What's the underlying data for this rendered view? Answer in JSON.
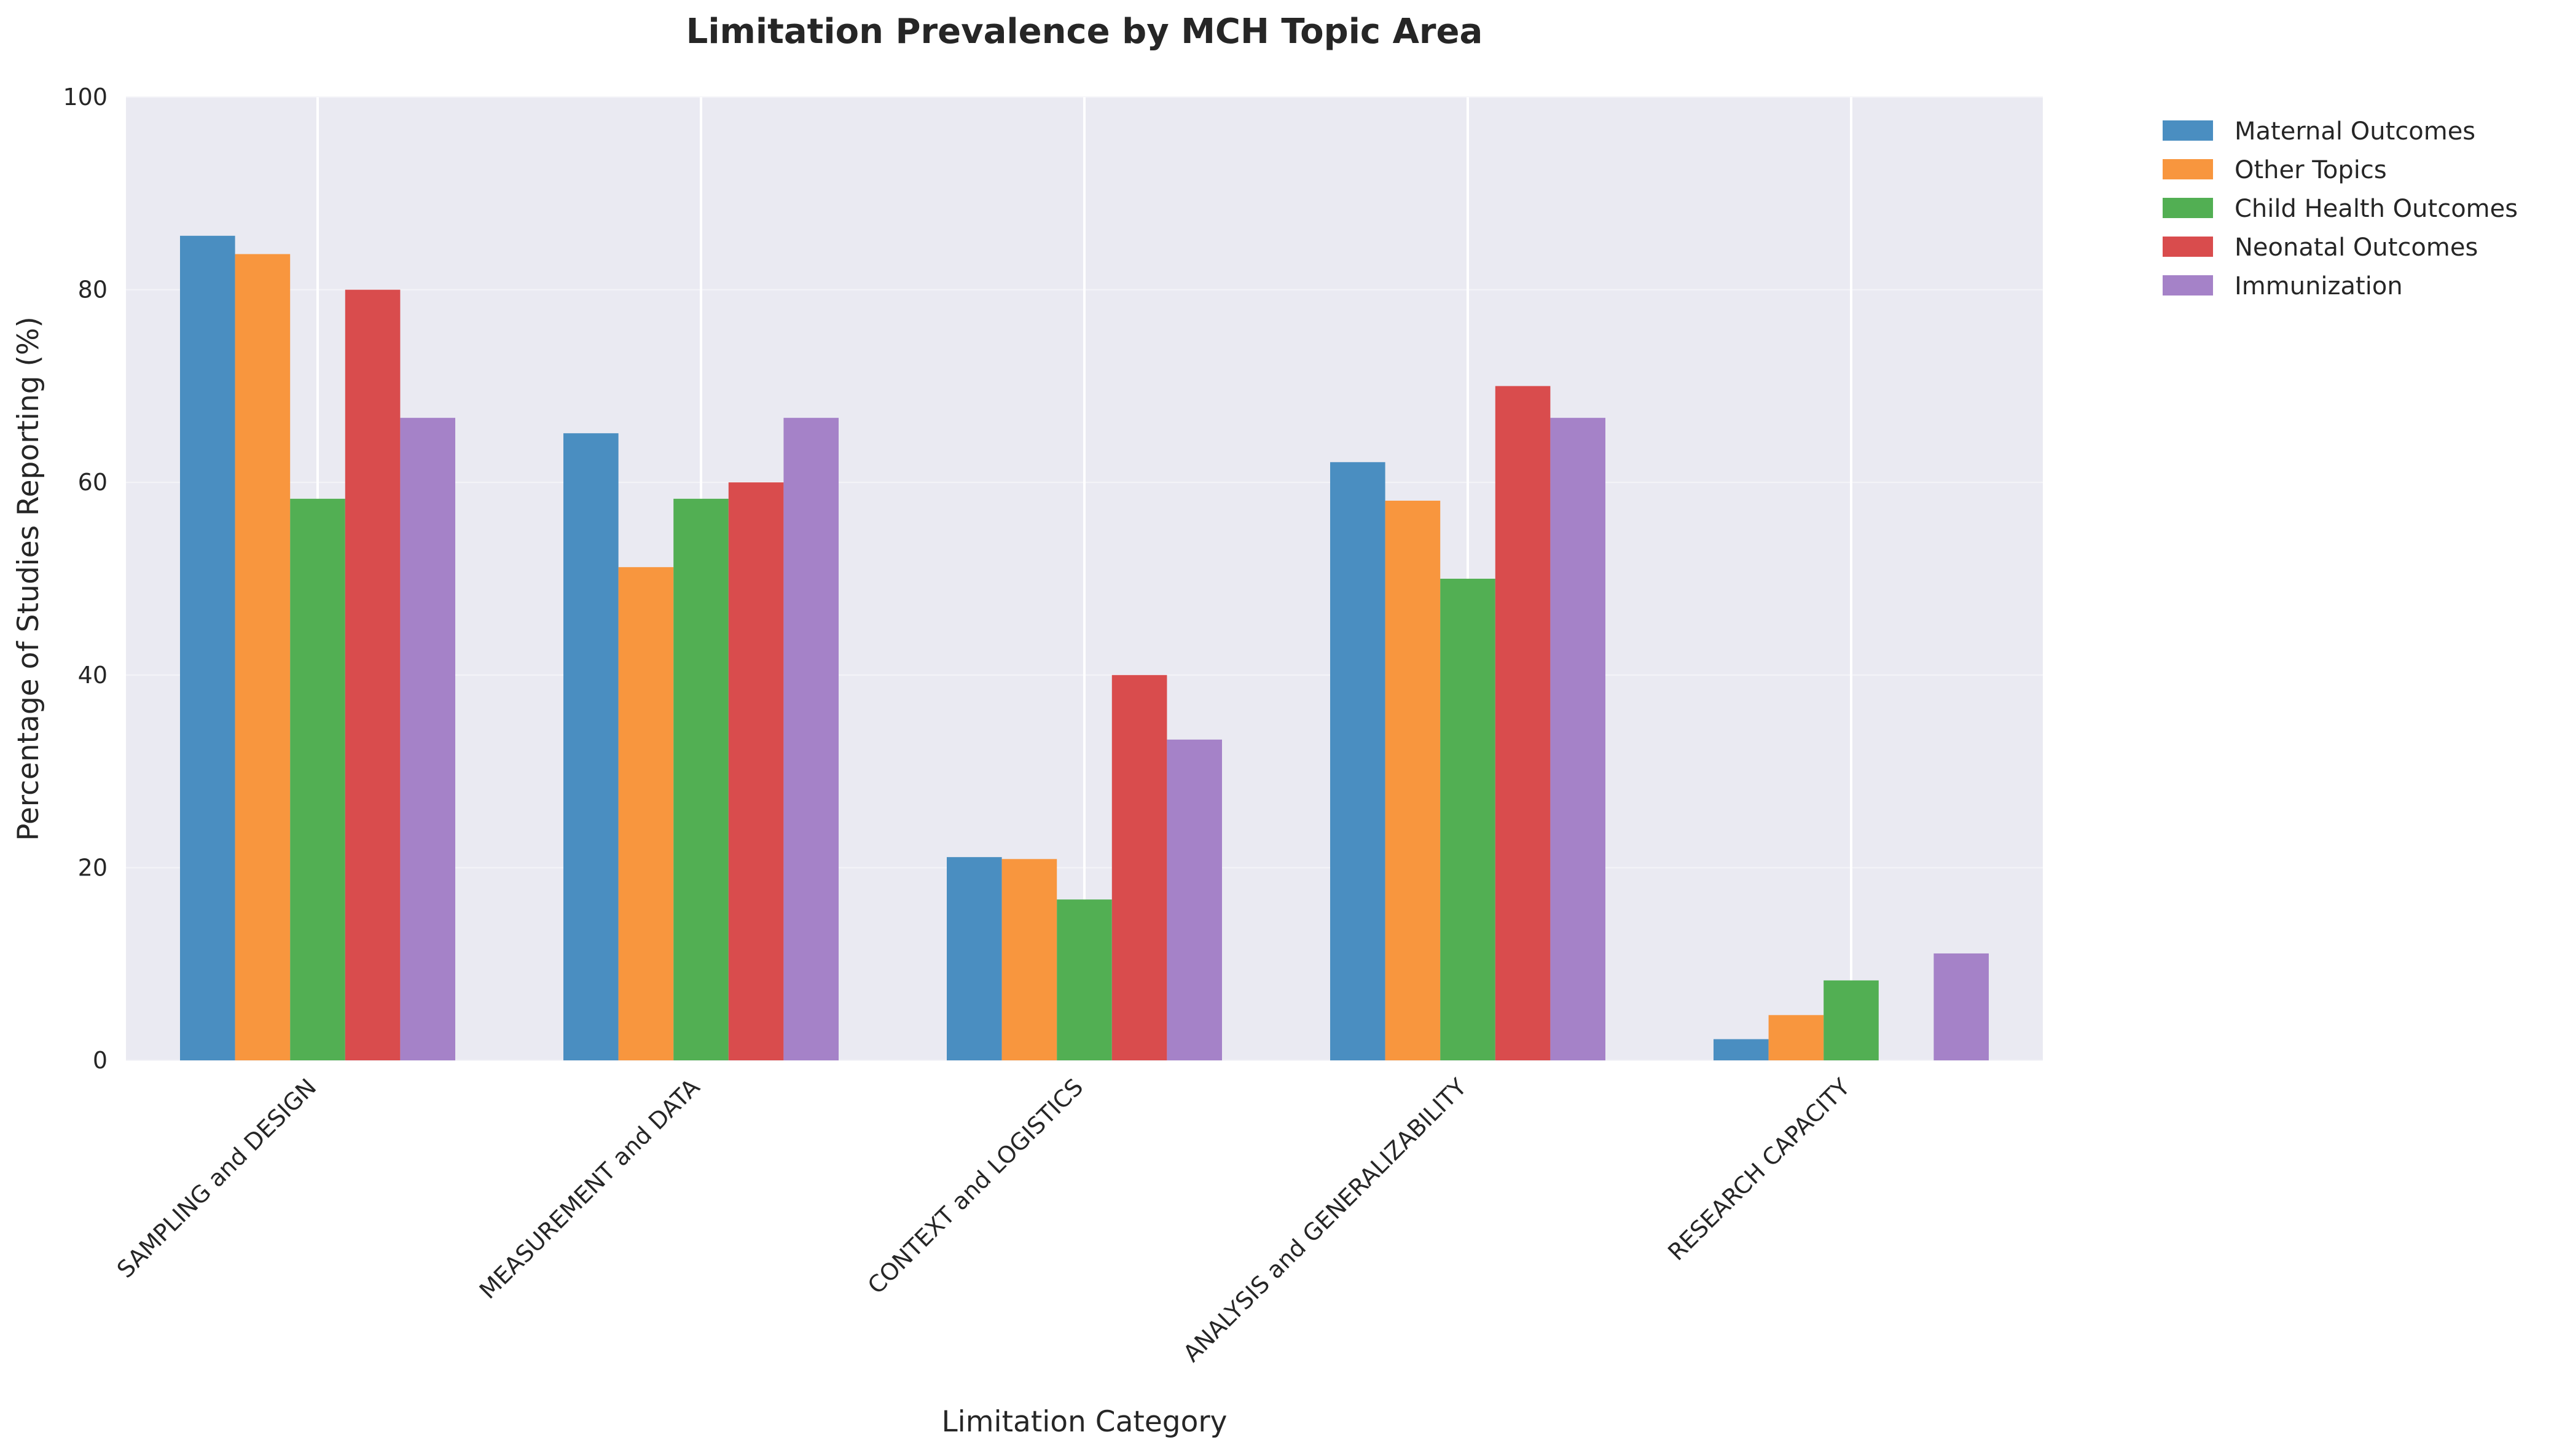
{
  "chart_data": {
    "type": "bar",
    "title": "Limitation Prevalence by MCH Topic Area",
    "xlabel": "Limitation Category",
    "ylabel": "Percentage of Studies Reporting (%)",
    "ylim": [
      0,
      100
    ],
    "yticks": [
      "0",
      "20",
      "40",
      "60",
      "80",
      "100"
    ],
    "grid": true,
    "legend_position": "outside-top-right",
    "categories": [
      "SAMPLING and DESIGN",
      "MEASUREMENT and DATA",
      "CONTEXT and LOGISTICS",
      "ANALYSIS and GENERALIZABILITY",
      "RESEARCH CAPACITY"
    ],
    "series": [
      {
        "name": "Maternal Outcomes",
        "color": "#4a8ec1",
        "values": [
          85.6,
          65.1,
          21.1,
          62.1,
          2.2
        ]
      },
      {
        "name": "Other Topics",
        "color": "#f8963e",
        "values": [
          83.7,
          51.2,
          20.9,
          58.1,
          4.7
        ]
      },
      {
        "name": "Child Health Outcomes",
        "color": "#52af53",
        "values": [
          58.3,
          58.3,
          16.7,
          50.0,
          8.3
        ]
      },
      {
        "name": "Neonatal Outcomes",
        "color": "#d94c4d",
        "values": [
          80.0,
          60.0,
          40.0,
          70.0,
          0.0
        ]
      },
      {
        "name": "Immunization",
        "color": "#a582c8",
        "values": [
          66.7,
          66.7,
          33.3,
          66.7,
          11.1
        ]
      }
    ]
  }
}
